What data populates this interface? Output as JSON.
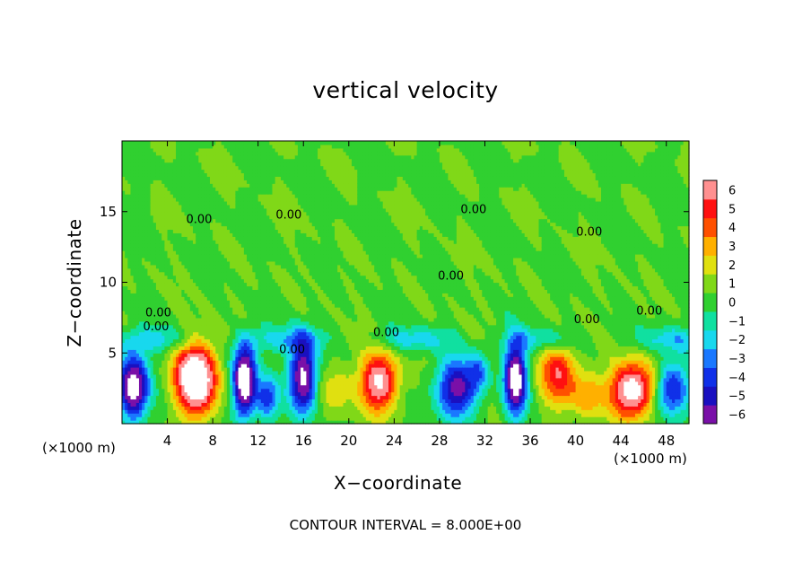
{
  "chart_data": {
    "type": "heatmap",
    "title": "vertical velocity",
    "xlabel": "X−coordinate",
    "ylabel": "Z−coordinate",
    "x_unit": "(×1000 m)",
    "xlim": [
      0,
      50
    ],
    "ylim": [
      0,
      20
    ],
    "x_ticks": [
      4,
      8,
      12,
      16,
      20,
      24,
      28,
      32,
      36,
      40,
      44,
      48
    ],
    "y_ticks": [
      5,
      10,
      15
    ],
    "x_tick_labels": [
      "4",
      "8",
      "12",
      "16",
      "20",
      "24",
      "28",
      "32",
      "36",
      "40",
      "44",
      "48"
    ],
    "y_tick_labels": [
      "5",
      "10",
      "15"
    ],
    "colorbar": {
      "min": -6,
      "max": 6,
      "tick_labels": [
        "6",
        "5",
        "4",
        "3",
        "2",
        "1",
        "0",
        "−1",
        "−2",
        "−3",
        "−4",
        "−5",
        "−6"
      ],
      "colors": [
        "#7a10a8",
        "#1a10c0",
        "#1030e8",
        "#1a78ff",
        "#18d8ee",
        "#10e0a0",
        "#30d030",
        "#80d818",
        "#e0e010",
        "#ffb000",
        "#ff5000",
        "#ff1010",
        "#ff9090"
      ]
    },
    "contour_label": "0.00",
    "contour_interval_text": "CONTOUR INTERVAL = 8.000E+00",
    "cells": [
      {
        "x": 1.0,
        "z": 2.6,
        "sx": 1.3,
        "sz": 2.3,
        "w": -8.0
      },
      {
        "x": 6.5,
        "z": 3.2,
        "sx": 1.8,
        "sz": 2.4,
        "w": 9.0
      },
      {
        "x": 10.8,
        "z": 3.1,
        "sx": 1.0,
        "sz": 2.5,
        "w": -9.0
      },
      {
        "x": 12.8,
        "z": 1.8,
        "sx": 1.0,
        "sz": 1.6,
        "w": -4.0
      },
      {
        "x": 16.0,
        "z": 3.4,
        "sx": 1.2,
        "sz": 2.6,
        "w": -7.5
      },
      {
        "x": 18.8,
        "z": 2.4,
        "sx": 1.6,
        "sz": 2.0,
        "w": 1.6
      },
      {
        "x": 22.7,
        "z": 3.0,
        "sx": 1.6,
        "sz": 2.0,
        "w": 6.5
      },
      {
        "x": 29.5,
        "z": 2.5,
        "sx": 1.8,
        "sz": 2.0,
        "w": -6.0
      },
      {
        "x": 31.5,
        "z": 3.8,
        "sx": 0.9,
        "sz": 1.5,
        "w": -2.5
      },
      {
        "x": 34.7,
        "z": 3.2,
        "sx": 1.0,
        "sz": 2.5,
        "w": -8.0
      },
      {
        "x": 38.5,
        "z": 3.6,
        "sx": 1.6,
        "sz": 2.2,
        "w": 4.5
      },
      {
        "x": 41.0,
        "z": 2.0,
        "sx": 1.4,
        "sz": 1.6,
        "w": 2.5
      },
      {
        "x": 45.0,
        "z": 2.4,
        "sx": 1.9,
        "sz": 1.9,
        "w": 7.5
      },
      {
        "x": 48.5,
        "z": 2.5,
        "sx": 1.5,
        "sz": 1.9,
        "w": -5.0
      }
    ],
    "grid": false
  }
}
